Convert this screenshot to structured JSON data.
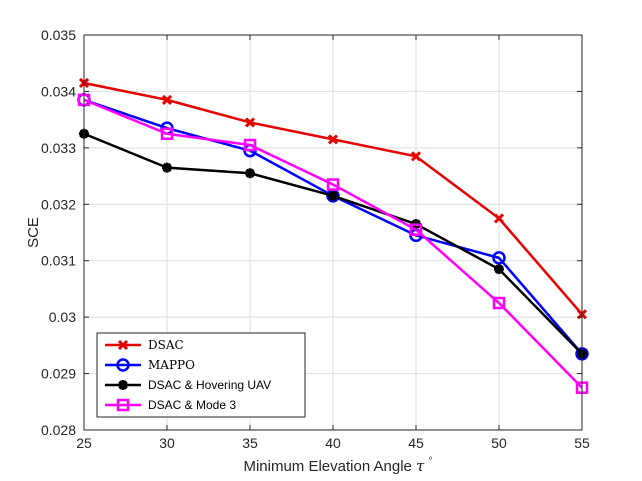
{
  "chart_data": {
    "type": "line",
    "title": "",
    "xlabel": "Minimum Elevation Angle",
    "xlabel_symbol": "τ",
    "xlabel_superscript": "°",
    "ylabel": "SCE",
    "x": [
      25,
      30,
      35,
      40,
      45,
      50,
      55
    ],
    "xlim": [
      25,
      55
    ],
    "ylim": [
      0.028,
      0.035
    ],
    "xticks": [
      25,
      30,
      35,
      40,
      45,
      50,
      55
    ],
    "xtick_labels": [
      "25",
      "30",
      "35",
      "40",
      "45",
      "50",
      "55"
    ],
    "yticks": [
      0.028,
      0.029,
      0.03,
      0.031,
      0.032,
      0.033,
      0.034,
      0.035
    ],
    "ytick_labels": [
      "0.028",
      "0.029",
      "0.03",
      "0.031",
      "0.032",
      "0.033",
      "0.034",
      "0.035"
    ],
    "grid": true,
    "legend_position": "bottom-left",
    "series": [
      {
        "name": "DSAC",
        "color": "#e60000",
        "marker": "x",
        "font": "serif",
        "values": [
          0.03415,
          0.03385,
          0.03345,
          0.03315,
          0.03285,
          0.03175,
          0.03005
        ]
      },
      {
        "name": "MAPPO",
        "color": "#0000ff",
        "marker": "circle",
        "font": "serif",
        "values": [
          0.03385,
          0.03335,
          0.03295,
          0.03215,
          0.03145,
          0.03105,
          0.02935
        ]
      },
      {
        "name": "DSAC & Hovering UAV",
        "color": "#000000",
        "marker": "asterisk",
        "font": "sans",
        "values": [
          0.03325,
          0.03265,
          0.03255,
          0.03215,
          0.03165,
          0.03085,
          0.02935
        ]
      },
      {
        "name": "DSAC & Mode 3",
        "color": "#ff00ff",
        "marker": "square",
        "font": "sans",
        "values": [
          0.03385,
          0.03325,
          0.03305,
          0.03235,
          0.03155,
          0.03025,
          0.02875
        ]
      }
    ]
  }
}
